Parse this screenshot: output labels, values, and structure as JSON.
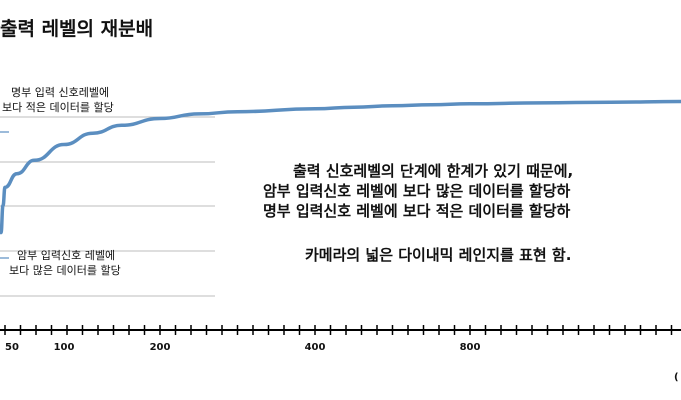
{
  "chart_data": {
    "type": "line",
    "title": "출력 레벨의 재분배",
    "annotations": {
      "upper_note": [
        "명부 입력 신호레벨에",
        "보다 적은 데이터를 할당"
      ],
      "lower_note": [
        "암부 입력신호 레벨에",
        "보다 많은 데이터를 할당"
      ],
      "main_text": [
        "출력 신호레벨의 단계에  한계가 있기 때문에,",
        "암부 입력신호 레벨에 보다 많은 데이터를 할당하",
        "명부 입력신호 레벨에 보다 적은 데이터를 할당하",
        "",
        "카메라의 넓은 다이내믹 레인지를 표현 함."
      ]
    },
    "x_tick_labels": [
      "50",
      "100",
      "200",
      "400",
      "800"
    ],
    "x_tick_values": [
      50,
      100,
      200,
      400,
      800
    ],
    "x_range": [
      25,
      1100
    ],
    "y_range": [
      0,
      1
    ],
    "grid": true,
    "series": [
      {
        "color": "#5b8ec0",
        "x": [
          30,
          40,
          50,
          60,
          75,
          100,
          130,
          160,
          200,
          250,
          300,
          400,
          500,
          600,
          700,
          800,
          900,
          1000,
          1100
        ],
        "y": [
          0.4,
          0.52,
          0.6,
          0.66,
          0.72,
          0.79,
          0.84,
          0.875,
          0.905,
          0.925,
          0.935,
          0.948,
          0.955,
          0.961,
          0.966,
          0.97,
          0.974,
          0.977,
          0.98
        ]
      }
    ],
    "x_unit_fragment": "("
  }
}
